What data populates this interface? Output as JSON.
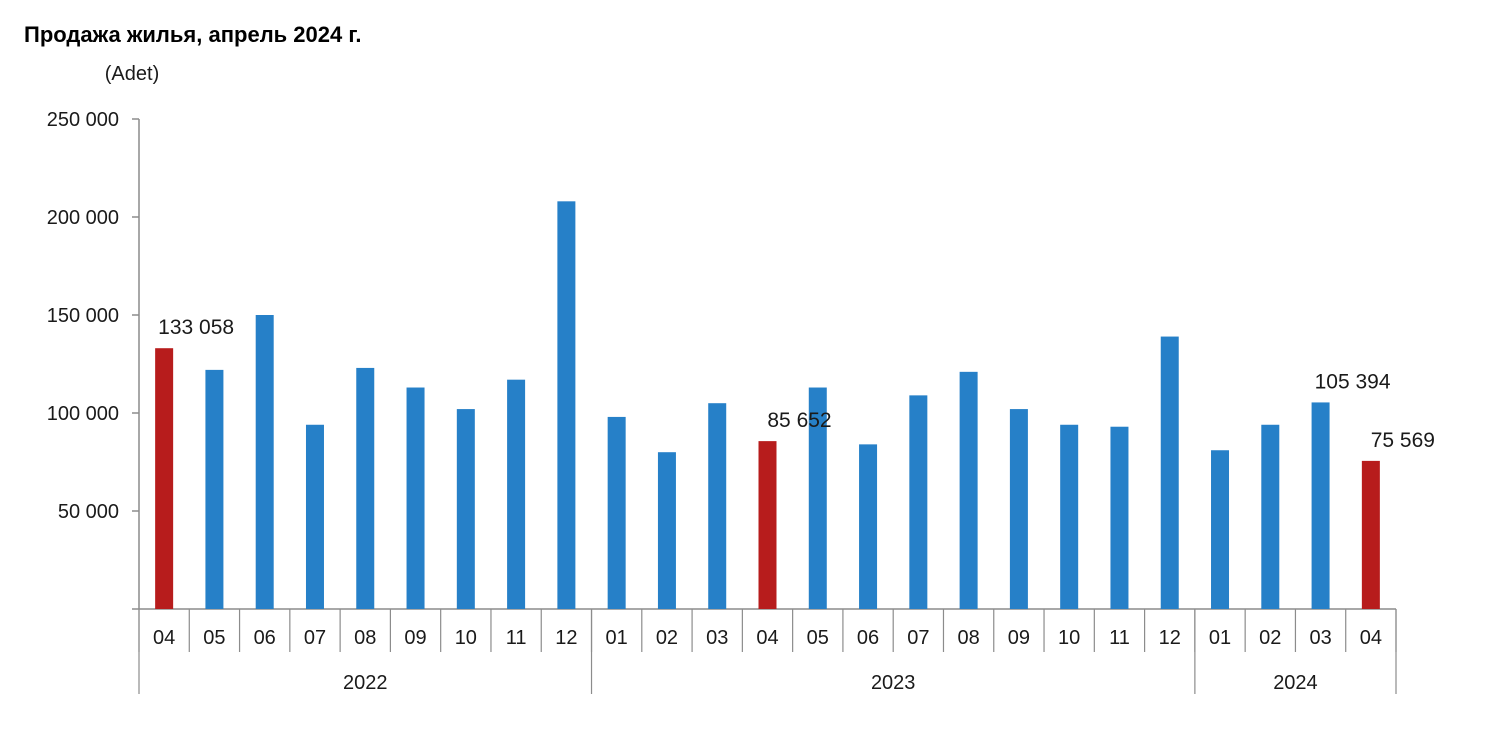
{
  "chart_data": {
    "type": "bar",
    "title": "Продажа жилья, апрель 2024 г.",
    "unit_label": "(Adet)",
    "ylim": [
      0,
      250000
    ],
    "y_ticks": [
      "250 000",
      "200 000",
      "150 000",
      "100 000",
      "50 000"
    ],
    "y_tick_values": [
      250000,
      200000,
      150000,
      100000,
      50000
    ],
    "grid": false,
    "legend": "none",
    "colors": {
      "default": "#2680c8",
      "highlight": "#b71c1c"
    },
    "categories": [
      "04",
      "05",
      "06",
      "07",
      "08",
      "09",
      "10",
      "11",
      "12",
      "01",
      "02",
      "03",
      "04",
      "05",
      "06",
      "07",
      "08",
      "09",
      "10",
      "11",
      "12",
      "01",
      "02",
      "03",
      "04"
    ],
    "groups": [
      {
        "label": "2022",
        "count": 9
      },
      {
        "label": "2023",
        "count": 12
      },
      {
        "label": "2024",
        "count": 4
      }
    ],
    "values": [
      133058,
      122000,
      150000,
      94000,
      123000,
      113000,
      102000,
      117000,
      208000,
      98000,
      80000,
      105000,
      85652,
      113000,
      84000,
      109000,
      121000,
      102000,
      94000,
      93000,
      139000,
      81000,
      94000,
      105394,
      75569
    ],
    "highlight": [
      true,
      false,
      false,
      false,
      false,
      false,
      false,
      false,
      false,
      false,
      false,
      false,
      true,
      false,
      false,
      false,
      false,
      false,
      false,
      false,
      false,
      false,
      false,
      false,
      true
    ],
    "data_labels": [
      {
        "index": 0,
        "text": "133 058"
      },
      {
        "index": 12,
        "text": "85 652"
      },
      {
        "index": 23,
        "text": "105 394"
      },
      {
        "index": 24,
        "text": "75 569"
      }
    ]
  }
}
